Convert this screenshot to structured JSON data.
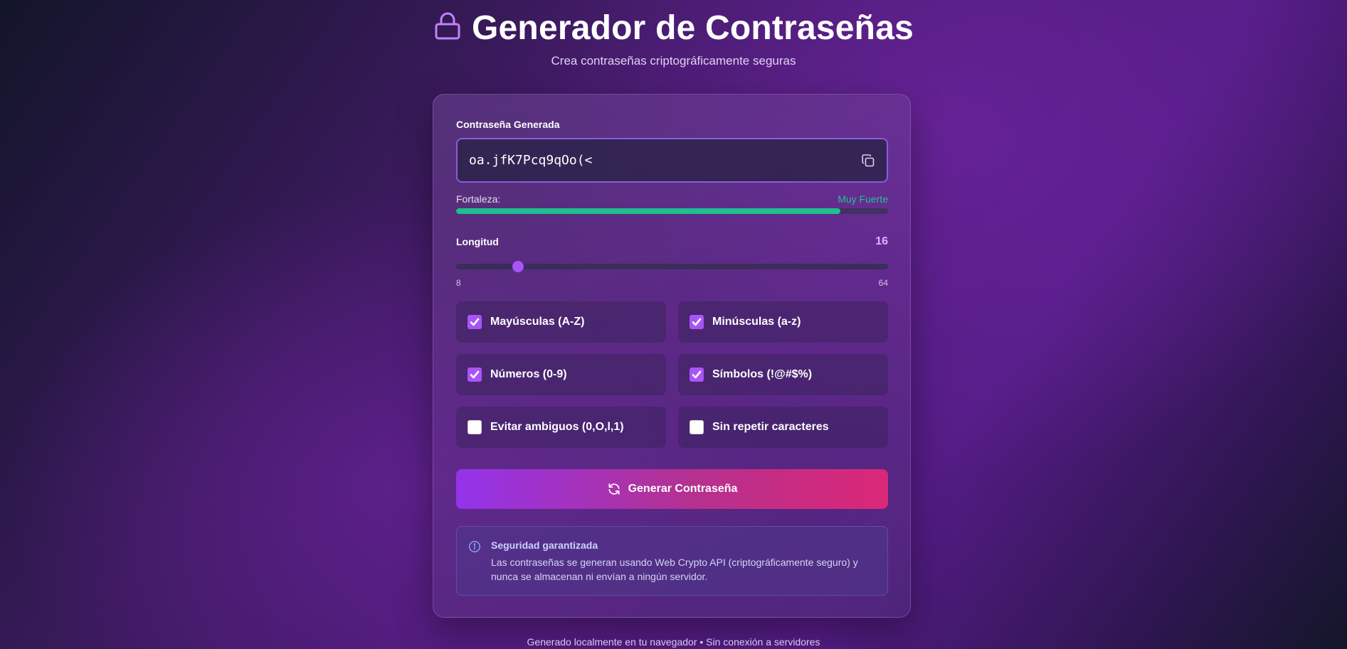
{
  "header": {
    "title": "Generador de Contraseñas",
    "subtitle": "Crea contraseñas criptográficamente seguras",
    "icon": "lock-icon"
  },
  "password": {
    "label": "Contraseña Generada",
    "value": "oa.jfK7Pcq9qOo(<",
    "copy_icon": "copy-icon"
  },
  "strength": {
    "label": "Fortaleza:",
    "value": "Muy Fuerte",
    "fraction": 0.89,
    "color": "#1fbf8f"
  },
  "length": {
    "label": "Longitud",
    "value": "16",
    "min": "8",
    "max": "64",
    "current": 16
  },
  "options": [
    {
      "label": "Mayúsculas (A-Z)",
      "checked": true
    },
    {
      "label": "Minúsculas (a-z)",
      "checked": true
    },
    {
      "label": "Números (0-9)",
      "checked": true
    },
    {
      "label": "Símbolos (!@#$%)",
      "checked": true
    },
    {
      "label": "Evitar ambiguos (0,O,l,1)",
      "checked": false
    },
    {
      "label": "Sin repetir caracteres",
      "checked": false
    }
  ],
  "generate": {
    "label": "Generar Contraseña",
    "icon": "refresh-icon"
  },
  "info": {
    "icon": "info-icon",
    "title": "Seguridad garantizada",
    "text": "Las contraseñas se generan usando Web Crypto API (criptográficamente seguro) y nunca se almacenan ni envían a ningún servidor."
  },
  "footer": {
    "text": "Generado localmente en tu navegador • Sin conexión a servidores"
  },
  "colors": {
    "accent": "#a855f7",
    "button_start": "#9333ea",
    "button_end": "#db2777"
  }
}
